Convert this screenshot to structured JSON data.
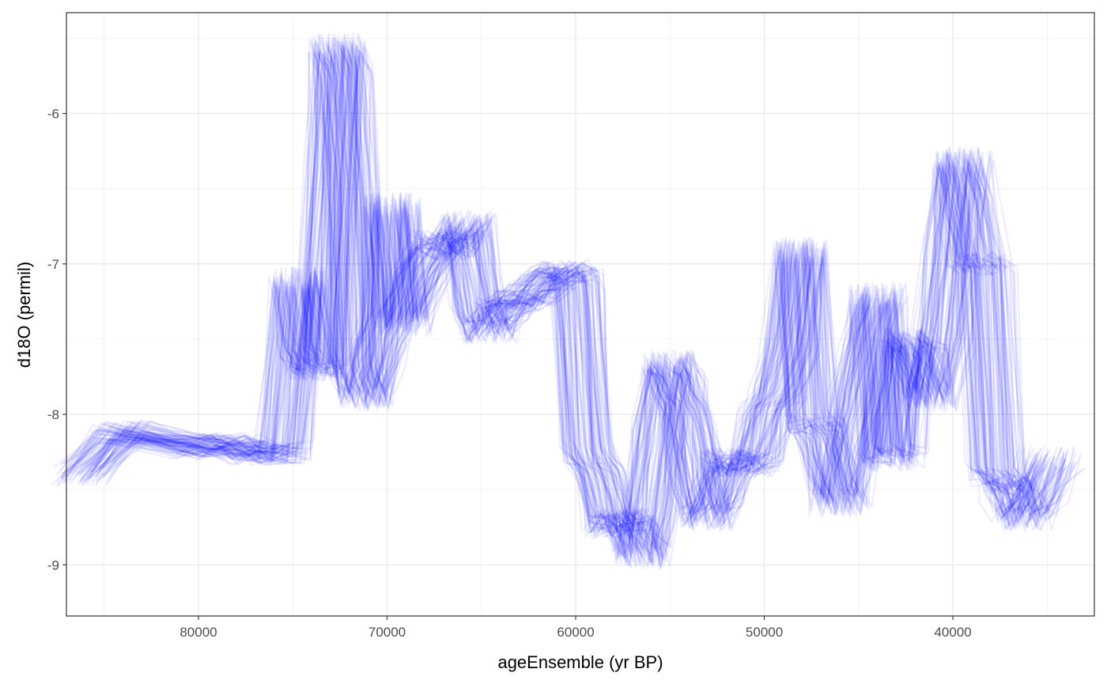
{
  "chart_data": {
    "type": "line",
    "title": "",
    "xlabel": "ageEnsemble (yr BP)",
    "ylabel": "d18O (permil)",
    "x_reversed": true,
    "xlim": [
      87000,
      32500
    ],
    "ylim": [
      -9.34,
      -5.33
    ],
    "x_ticks": [
      80000,
      70000,
      60000,
      50000,
      40000
    ],
    "x_tick_labels": [
      "80000",
      "70000",
      "60000",
      "50000",
      "40000"
    ],
    "y_ticks": [
      -6,
      -7,
      -8,
      -9
    ],
    "y_tick_labels": [
      "-6",
      "-7",
      "-8",
      "-9"
    ],
    "grid": true,
    "legend": "none",
    "ensemble_members": 100,
    "line_color": "#0000ff",
    "line_opacity": 0.07,
    "series": [
      {
        "name": "",
        "x": [
          86100,
          84100,
          80000,
          78500,
          77000,
          75500,
          74600,
          74300,
          73900,
          73500,
          72900,
          72600,
          72250,
          71900,
          71600,
          71100,
          70500,
          70050,
          69800,
          69200,
          68300,
          67300,
          66600,
          65800,
          65200,
          64600,
          63900,
          63100,
          62300,
          61400,
          60600,
          60000,
          59400,
          58800,
          58200,
          57600,
          57000,
          56500,
          56050,
          55600,
          55100,
          54600,
          54150,
          53600,
          53100,
          52500,
          51900,
          51200,
          50500,
          49900,
          49300,
          48700,
          48100,
          47600,
          47000,
          46500,
          46050,
          45600,
          45050,
          44500,
          44050,
          43600,
          43050,
          42500,
          41900,
          41300,
          40600,
          40100,
          39700,
          39250,
          38800,
          38300,
          37800,
          37300,
          36800,
          36400,
          35600,
          34800
        ],
        "y": [
          -8.4,
          -8.12,
          -8.22,
          -8.2,
          -8.26,
          -8.25,
          -7.1,
          -7.55,
          -7.7,
          -7.7,
          -6.3,
          -5.55,
          -5.75,
          -6.5,
          -7.7,
          -7.9,
          -7.6,
          -7.35,
          -6.6,
          -7.4,
          -7.1,
          -6.85,
          -6.9,
          -6.72,
          -7.3,
          -7.45,
          -7.3,
          -7.25,
          -7.2,
          -7.1,
          -7.05,
          -7.1,
          -8.25,
          -8.4,
          -8.75,
          -8.7,
          -8.75,
          -8.95,
          -8.6,
          -8.1,
          -7.65,
          -7.8,
          -8.0,
          -8.4,
          -8.7,
          -8.55,
          -8.3,
          -8.35,
          -8.3,
          -8.0,
          -7.85,
          -7.55,
          -6.9,
          -8.05,
          -8.1,
          -8.4,
          -8.6,
          -8.3,
          -7.9,
          -7.5,
          -7.2,
          -8.25,
          -8.3,
          -7.5,
          -7.6,
          -7.9,
          -7.5,
          -6.9,
          -6.3,
          -6.6,
          -7.0,
          -7.0,
          -8.4,
          -8.45,
          -8.5,
          -8.7,
          -8.55,
          -8.28
        ]
      }
    ]
  }
}
